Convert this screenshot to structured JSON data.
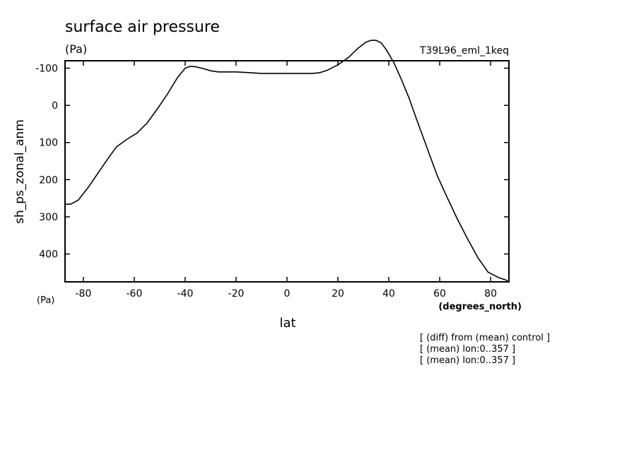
{
  "chart_data": {
    "type": "line",
    "title": "surface air pressure",
    "units_label": "(Pa)",
    "run_label": "T39L96_eml_1keq",
    "ylabel": "sh_ps_zonal_anm",
    "xlabel": "lat",
    "x_units": "(degrees_north)",
    "y_units_corner": "(Pa)",
    "xlim": [
      -87.2,
      87.2
    ],
    "ylim": [
      -120,
      475
    ],
    "y_inverted": true,
    "x_ticks": [
      -80,
      -60,
      -40,
      -20,
      0,
      20,
      40,
      60,
      80
    ],
    "x_tick_labels": [
      "-80",
      "-60",
      "-40",
      "-20",
      "0",
      "20",
      "40",
      "60",
      "80"
    ],
    "y_ticks": [
      -100,
      0,
      100,
      200,
      300,
      400
    ],
    "y_tick_labels": [
      "-100",
      "0",
      "100",
      "200",
      "300",
      "400"
    ],
    "notes": [
      "[ (diff) from (mean) control ]",
      "[ (mean) lon:0..357 ]",
      "[ (mean) lon:0..357 ]"
    ],
    "series": [
      {
        "x": [
          -87.2,
          -85,
          -82,
          -78,
          -74,
          -70,
          -67,
          -63,
          -59,
          -55,
          -51,
          -47,
          -43,
          -40,
          -38,
          -36,
          -33,
          -30,
          -27,
          -24,
          -20,
          -15,
          -10,
          -5,
          0,
          5,
          10,
          13,
          16,
          20,
          24,
          28,
          31,
          33,
          35,
          37,
          39,
          42,
          45,
          48,
          51,
          55,
          59,
          63,
          67,
          71,
          75,
          79,
          83,
          86,
          87.2
        ],
        "values": [
          266,
          266,
          255,
          220,
          180,
          140,
          112,
          92,
          75,
          48,
          10,
          -30,
          -75,
          -100,
          -105,
          -104,
          -99,
          -93,
          -90,
          -90,
          -90,
          -88,
          -86,
          -86,
          -86,
          -86,
          -86,
          -88,
          -95,
          -109,
          -128,
          -154,
          -170,
          -175,
          -175,
          -168,
          -150,
          -115,
          -69,
          -19,
          39,
          114,
          189,
          249,
          307,
          360,
          410,
          449,
          463,
          470,
          475
        ]
      }
    ]
  }
}
